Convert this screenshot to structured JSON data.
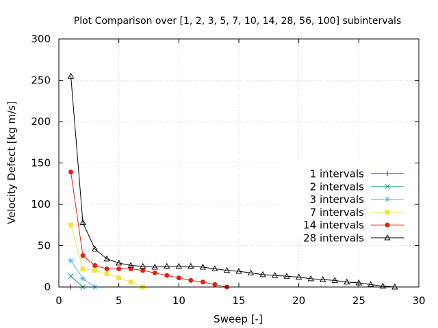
{
  "chart_data": {
    "type": "line",
    "title": "Plot Comparison over [1, 2, 3, 5, 7, 10, 14, 28, 56, 100] subintervals",
    "xlabel": "Sweep [-]",
    "ylabel": "Velocity Defect [kg m/s]",
    "xlim": [
      0,
      30
    ],
    "ylim": [
      0,
      300
    ],
    "xticks": [
      0,
      5,
      10,
      15,
      20,
      25,
      30
    ],
    "yticks": [
      0,
      50,
      100,
      150,
      200,
      250,
      300
    ],
    "grid": true,
    "legend_position": "right",
    "series": [
      {
        "name": "1 intervals",
        "color": "#940094",
        "marker": "plus",
        "x": [
          1
        ],
        "y": [
          0
        ]
      },
      {
        "name": "2 intervals",
        "color": "#009e73",
        "marker": "cross",
        "x": [
          1,
          2
        ],
        "y": [
          13,
          0
        ]
      },
      {
        "name": "3 intervals",
        "color": "#56b4e9",
        "marker": "star",
        "x": [
          1,
          2,
          3
        ],
        "y": [
          32,
          10,
          0
        ]
      },
      {
        "name": "7 intervals",
        "color": "#f0e442",
        "marker": "square",
        "x": [
          1,
          2,
          3,
          4,
          5,
          6,
          7
        ],
        "y": [
          75,
          22,
          20,
          16,
          11,
          6,
          0
        ]
      },
      {
        "name": "14 intervals",
        "color": "#e51e10",
        "marker": "circle",
        "x": [
          1,
          2,
          3,
          4,
          5,
          6,
          7,
          8,
          9,
          10,
          11,
          12,
          13,
          14
        ],
        "y": [
          139,
          38,
          26,
          22,
          22,
          22,
          20,
          17,
          14,
          11,
          8,
          6,
          3,
          0
        ]
      },
      {
        "name": "28 intervals",
        "color": "#000000",
        "marker": "triangle",
        "x": [
          1,
          2,
          3,
          4,
          5,
          6,
          7,
          8,
          9,
          10,
          11,
          12,
          13,
          14,
          15,
          16,
          17,
          18,
          19,
          20,
          21,
          22,
          23,
          24,
          25,
          26,
          27,
          28
        ],
        "y": [
          255,
          78,
          46,
          34,
          29,
          26,
          25,
          24,
          25,
          25,
          25,
          24,
          22,
          20,
          19,
          17,
          15,
          14,
          13,
          12,
          10,
          9,
          8,
          6,
          5,
          3,
          1,
          0
        ]
      }
    ]
  }
}
